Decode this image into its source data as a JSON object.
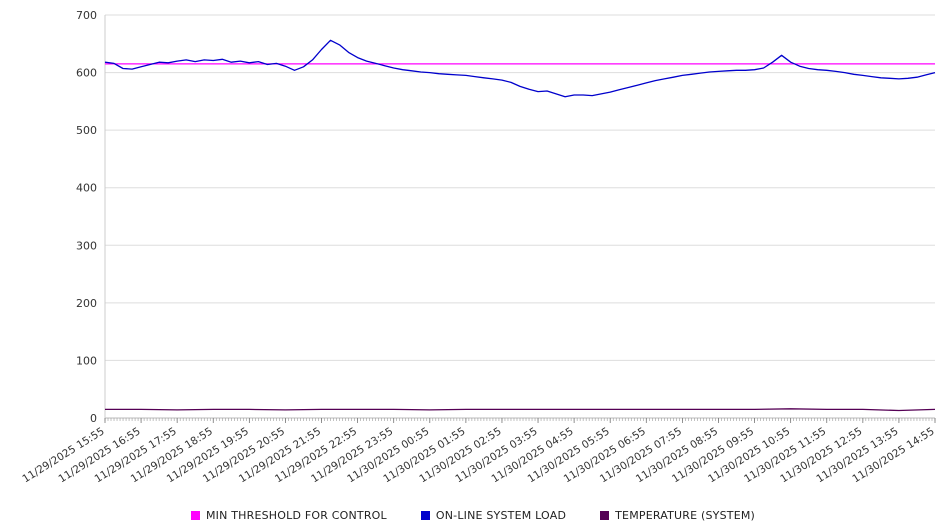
{
  "chart_data": {
    "type": "line",
    "title": "",
    "xlabel": "",
    "ylabel": "",
    "ylim": [
      0,
      700
    ],
    "y_ticks": [
      0,
      100,
      200,
      300,
      400,
      500,
      600,
      700
    ],
    "grid": "horizontal",
    "legend_position": "bottom",
    "x_labels": [
      "11/29/2025 15:55",
      "11/29/2025 16:55",
      "11/29/2025 17:55",
      "11/29/2025 18:55",
      "11/29/2025 19:55",
      "11/29/2025 20:55",
      "11/29/2025 21:55",
      "11/29/2025 22:55",
      "11/29/2025 23:55",
      "11/30/2025 00:55",
      "11/30/2025 01:55",
      "11/30/2025 02:55",
      "11/30/2025 03:55",
      "11/30/2025 04:55",
      "11/30/2025 05:55",
      "11/30/2025 06:55",
      "11/30/2025 07:55",
      "11/30/2025 08:55",
      "11/30/2025 09:55",
      "11/30/2025 10:55",
      "11/30/2025 11:55",
      "11/30/2025 12:55",
      "11/30/2025 13:55",
      "11/30/2025 14:55"
    ],
    "minor_tick_count": 276,
    "series": [
      {
        "name": "MIN THRESHOLD FOR CONTROL",
        "color": "#ff00ff",
        "constant": 615
      },
      {
        "name": "ON-LINE SYSTEM LOAD",
        "color": "#0000cc",
        "values": [
          618,
          616,
          607,
          606,
          610,
          614,
          618,
          617,
          620,
          622,
          619,
          622,
          621,
          623,
          618,
          620,
          617,
          619,
          614,
          616,
          611,
          604,
          610,
          622,
          640,
          656,
          648,
          635,
          626,
          620,
          616,
          612,
          608,
          605,
          603,
          601,
          600,
          598,
          597,
          596,
          595,
          593,
          591,
          589,
          587,
          583,
          576,
          571,
          567,
          568,
          563,
          558,
          561,
          561,
          560,
          563,
          566,
          570,
          574,
          578,
          582,
          586,
          589,
          592,
          595,
          597,
          599,
          601,
          602,
          603,
          604,
          604,
          605,
          608,
          618,
          630,
          618,
          611,
          607,
          605,
          604,
          602,
          600,
          597,
          595,
          593,
          591,
          590,
          589,
          590,
          592,
          596,
          600
        ]
      },
      {
        "name": "TEMPERATURE (SYSTEM)",
        "color": "#550055",
        "values": [
          15,
          15,
          14,
          15,
          15,
          14,
          15,
          15,
          15,
          14,
          15,
          15,
          15,
          15,
          15,
          15,
          15,
          15,
          15,
          16,
          15,
          15,
          13,
          15
        ]
      }
    ]
  }
}
